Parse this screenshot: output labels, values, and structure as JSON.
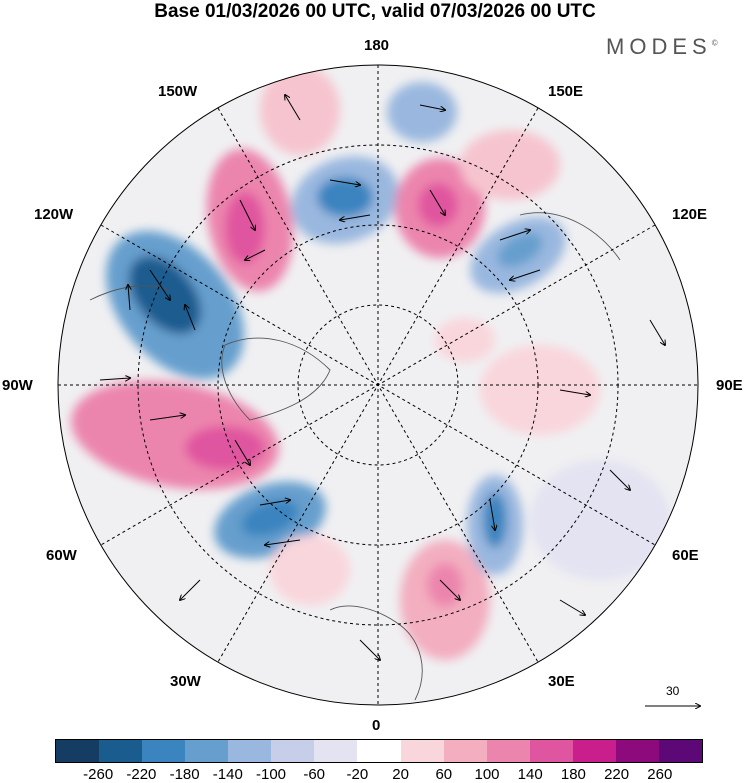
{
  "title": "Base 01/03/2026 00 UTC, valid 07/03/2026 00 UTC",
  "brand": "MODES",
  "brand_mark": "©",
  "longitude_labels": {
    "lon_180": "180",
    "lon_150e": "150E",
    "lon_120e": "120E",
    "lon_90e": "90E",
    "lon_60e": "60E",
    "lon_30e": "30E",
    "lon_0": "0",
    "lon_30w": "30W",
    "lon_60w": "60W",
    "lon_90w": "90W",
    "lon_120w": "120W",
    "lon_150w": "150W"
  },
  "wind_reference_value": "30",
  "colorbar": {
    "colors": [
      "#153c63",
      "#1b5c8f",
      "#3a84bf",
      "#669fce",
      "#9ab8df",
      "#c6cee9",
      "#e3e3f2",
      "#ffffff",
      "#f9d6dc",
      "#f3aec0",
      "#ec85ad",
      "#e0559f",
      "#c91e8c",
      "#8d0a7d",
      "#5c0977"
    ],
    "ticks": [
      "-260",
      "-220",
      "-180",
      "-140",
      "-100",
      "-60",
      "-20",
      "20",
      "60",
      "100",
      "140",
      "180",
      "220",
      "260"
    ]
  }
}
